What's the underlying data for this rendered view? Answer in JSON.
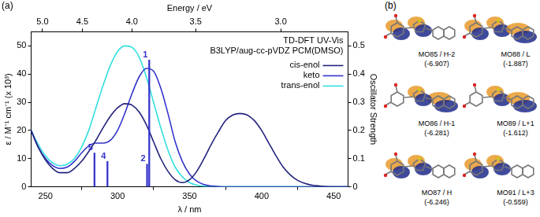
{
  "chart_data": {
    "type": "line",
    "title": "TD-DFT UV-Vis",
    "subtitle": "B3LYP/aug-cc-pVDZ PCM(DMSO)",
    "x_label": "λ / nm",
    "y_label": "ε / M⁻¹ cm⁻¹ (x 10³)",
    "y2_label": "Oscillator Strength",
    "x2_label": "Energy / eV",
    "x": [
      240,
      245,
      250,
      255,
      260,
      265,
      270,
      275,
      280,
      285,
      290,
      295,
      300,
      305,
      310,
      315,
      320,
      325,
      330,
      335,
      340,
      345,
      350,
      355,
      360,
      365,
      370,
      375,
      380,
      385,
      390,
      395,
      400,
      405,
      410,
      415,
      420,
      425,
      430,
      435,
      440,
      445,
      450,
      455,
      460
    ],
    "series": [
      {
        "name": "cis-enol",
        "color": "#23237e",
        "values": [
          20,
          14,
          9.5,
          6.5,
          5,
          5,
          6.5,
          9,
          12.5,
          16.5,
          21,
          25,
          28,
          29.5,
          29,
          26.5,
          22,
          16,
          10,
          5.5,
          2.5,
          1.5,
          2.5,
          5.5,
          10,
          15,
          19.5,
          23.5,
          25.5,
          26,
          25.5,
          23.5,
          20,
          15.5,
          11,
          7,
          4.2,
          2.3,
          1.2,
          0.6,
          0.3,
          0.1,
          0,
          0,
          0
        ]
      },
      {
        "name": "keto",
        "color": "#3434cc",
        "values": [
          20,
          14,
          10,
          7.5,
          6.5,
          7,
          9,
          12,
          14.5,
          15.5,
          15.5,
          16.5,
          20,
          26,
          33,
          39,
          42,
          41,
          35,
          26,
          16,
          9,
          4.5,
          2,
          0.8,
          0.3,
          0.1,
          0,
          0,
          0,
          0,
          0,
          0,
          0,
          0,
          0,
          0,
          0,
          0,
          0,
          0,
          0,
          0,
          0,
          0
        ]
      },
      {
        "name": "trans-enol",
        "color": "#33dfe0",
        "values": [
          20,
          15,
          11,
          8.5,
          7.5,
          8,
          10,
          14,
          20,
          28,
          36,
          43,
          48,
          50,
          49.5,
          46,
          39,
          30,
          21,
          13,
          7,
          3.5,
          1.5,
          0.6,
          0.2,
          0.1,
          0,
          0,
          0,
          0,
          0,
          0,
          0,
          0,
          0,
          0,
          0,
          0,
          0,
          0,
          0,
          0,
          0,
          0,
          0
        ]
      }
    ],
    "sticks": {
      "type": "bar",
      "axis": "y2",
      "color": "#3434cc",
      "x": [
        322,
        320.5,
        293,
        284
      ],
      "values": [
        0.45,
        0.08,
        0.09,
        0.12
      ],
      "labels": [
        "1",
        "2",
        "4",
        "5"
      ]
    },
    "xlim": [
      240,
      460
    ],
    "xticks": [
      250,
      300,
      350,
      400,
      450
    ],
    "ylim": [
      0,
      55
    ],
    "yticks": [
      0,
      10,
      20,
      30,
      40,
      50
    ],
    "y2lim": [
      0,
      0.55
    ],
    "y2ticks": [
      0,
      0.1,
      0.2,
      0.3,
      0.4,
      0.5
    ],
    "x2lim": [
      5.166,
      2.6953
    ],
    "x2ticks": [
      {
        "value": 5,
        "label": "5.0"
      },
      {
        "value": 4.5,
        "label": "4.5"
      },
      {
        "value": 4,
        "label": "4.0"
      },
      {
        "value": 3.5,
        "label": "3.5"
      },
      {
        "value": 3,
        "label": "3.0"
      }
    ],
    "grid": false,
    "legend": "top-right"
  },
  "panel_a_label": "(a)",
  "panel_b": {
    "label": "(b)",
    "orbitals": [
      {
        "name": "MO85 / H-2",
        "energy": "(-6.907)"
      },
      {
        "name": "MO86 / H-1",
        "energy": "(-6.281)"
      },
      {
        "name": "MO87 / H",
        "energy": "(-6.246)"
      },
      {
        "name": "MO88 / L",
        "energy": "(-1.887)"
      },
      {
        "name": "MO89 / L+1",
        "energy": "(-1.612)"
      },
      {
        "name": "MO91 / L+3",
        "energy": "(-0.559)"
      }
    ]
  }
}
